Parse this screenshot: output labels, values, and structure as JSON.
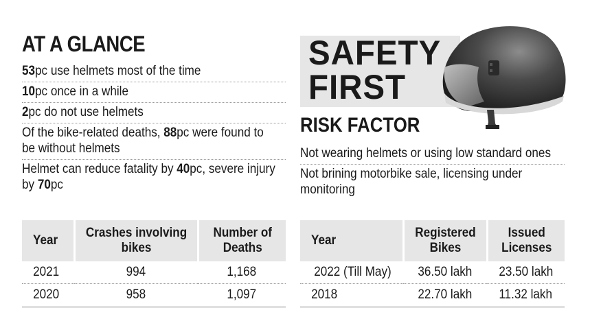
{
  "at_a_glance": {
    "heading": "AT A GLANCE",
    "items": [
      {
        "bold": "53",
        "text": "pc use helmets most of the time"
      },
      {
        "bold": "10",
        "text": "pc once in a while"
      },
      {
        "bold": "2",
        "text": "pc do not use helmets"
      },
      {
        "line1_pre": "Of the bike-related deaths, ",
        "line1_bold": "88",
        "line1_post": "pc were found to",
        "line2": "be without helmets"
      },
      {
        "line1_pre": "Helmet can reduce fatality by ",
        "line1_bold": "40",
        "line1_post": "pc, severe injury",
        "line2_pre": "by ",
        "line2_bold": "70",
        "line2_post": "pc"
      }
    ]
  },
  "safety_first": {
    "line1": "SAFETY",
    "line2": "FIRST"
  },
  "risk_factor": {
    "heading": "RISK FACTOR",
    "items": [
      {
        "line1": "Not wearing helmets or using low standard ones"
      },
      {
        "line1": "Not brining motorbike sale, licensing under",
        "line2": "monitoring"
      }
    ]
  },
  "crash_table": {
    "headers": [
      "Year",
      "Crashes involving bikes",
      "Number of Deaths"
    ],
    "rows": [
      [
        "2021",
        "994",
        "1,168"
      ],
      [
        "2020",
        "958",
        "1,097"
      ]
    ]
  },
  "registration_table": {
    "headers": [
      "Year",
      "Registered Bikes",
      "Issued Licenses"
    ],
    "rows": [
      [
        "2022 (Till May)",
        "36.50 lakh",
        "23.50 lakh"
      ],
      [
        "2018",
        "22.70 lakh",
        "11.32 lakh"
      ]
    ]
  },
  "icons": {
    "helmet": "motorcycle-helmet-icon"
  }
}
